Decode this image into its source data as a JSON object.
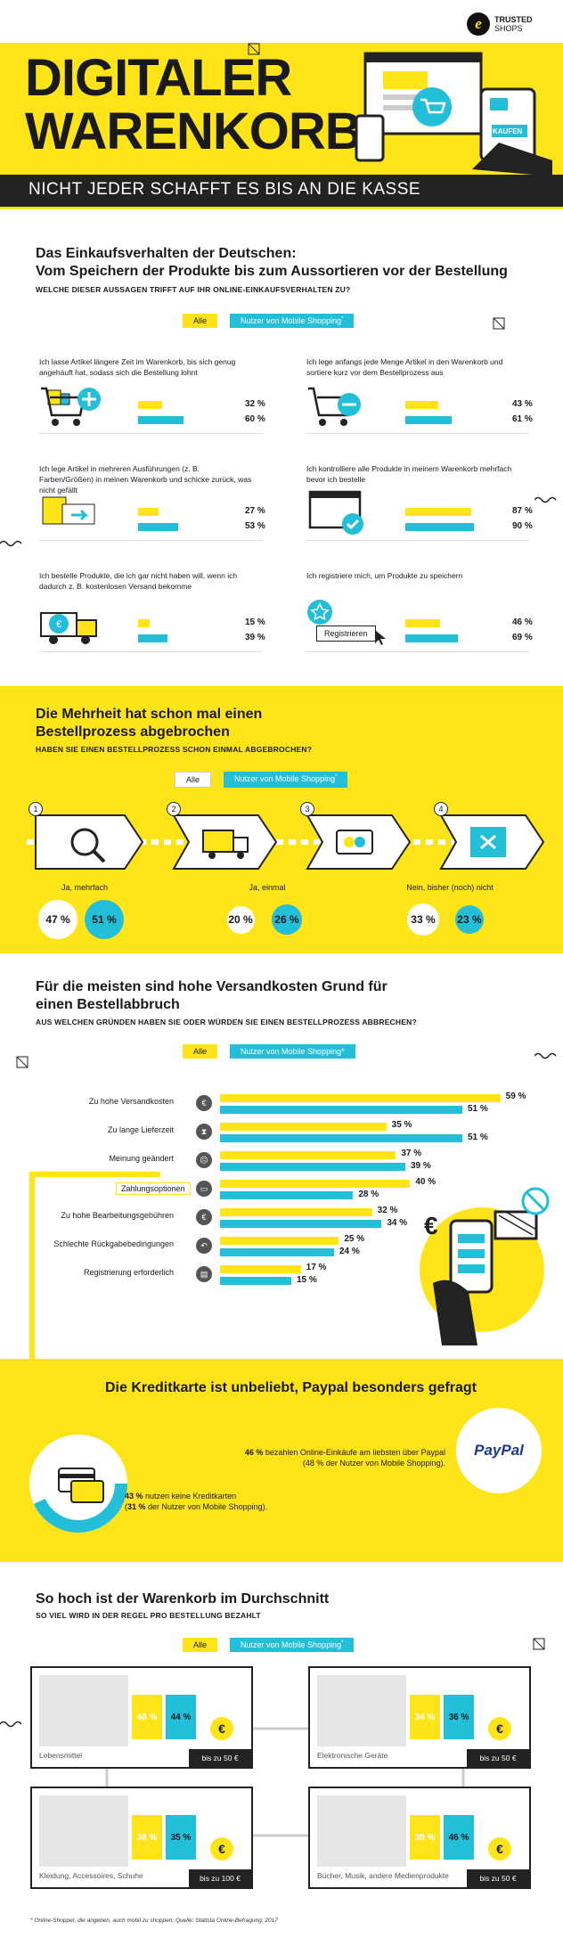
{
  "header": {
    "title_line1": "DIGITALER",
    "title_line2": "WARENKORB",
    "subtitle": "NICHT JEDER SCHAFFT ES BIS AN DIE KASSE",
    "brand_line1": "TRUSTED",
    "brand_line2": "SHOPS",
    "screen_label": "KAUFEN",
    "colors": {
      "yellow": "#ffe41a",
      "cyan": "#23bed8",
      "dark": "#1a1a1a"
    }
  },
  "legend": {
    "all": "Alle",
    "mobile": "Nutzer von Mobile Shopping",
    "mobile_mark": "*"
  },
  "section1": {
    "title_line1": "Das Einkaufsverhalten der Deutschen:",
    "title_line2": "Vom Speichern der Produkte bis zum Aussortieren vor der Bestellung",
    "question": "WELCHE DIESER AUSSAGEN TRIFFT AUF IHR ONLINE-EINKAUFSVERHALTEN ZU?",
    "button_label": "Registrieren",
    "items": [
      {
        "text": "Ich lasse Artikel längere Zeit im Warenkorb, bis sich genug angehäuft hat, sodass sich die Bestellung lohnt",
        "all": 32,
        "mobile": 60,
        "all_label": "32 %",
        "mobile_label": "60 %"
      },
      {
        "text": "Ich lege anfangs jede Menge Artikel in den Warenkorb und sortiere kurz vor dem Bestellprozess aus",
        "all": 43,
        "mobile": 61,
        "all_label": "43 %",
        "mobile_label": "61 %"
      },
      {
        "text": "Ich lege Artikel in mehreren Ausführungen (z. B. Farben/Größen) in meinen Warenkorb und schicke zurück, was nicht gefällt",
        "all": 27,
        "mobile": 53,
        "all_label": "27 %",
        "mobile_label": "53 %"
      },
      {
        "text": "Ich kontrolliere alle Produkte in meinem Warenkorb mehrfach bevor ich bestelle",
        "all": 87,
        "mobile": 90,
        "all_label": "87 %",
        "mobile_label": "90 %"
      },
      {
        "text": "Ich bestelle Produkte, die ich gar nicht haben will, wenn ich dadurch z. B. kostenlosen Versand bekomme",
        "all": 15,
        "mobile": 39,
        "all_label": "15 %",
        "mobile_label": "39 %"
      },
      {
        "text": "Ich registriere mich, um Produkte zu speichern",
        "all": 46,
        "mobile": 69,
        "all_label": "46 %",
        "mobile_label": "69 %"
      }
    ]
  },
  "section2": {
    "title_line1": "Die Mehrheit hat schon mal einen",
    "title_line2": "Bestellprozess abgebrochen",
    "question": "HABEN SIE EINEN BESTELLPROZESS SCHON EINMAL ABGEBROCHEN?",
    "steps": [
      "1",
      "2",
      "3",
      "4"
    ],
    "answers": [
      {
        "label": "Ja, mehrfach",
        "all": 47,
        "mobile": 51,
        "all_label": "47 %",
        "mobile_label": "51 %"
      },
      {
        "label": "Ja, einmal",
        "all": 20,
        "mobile": 26,
        "all_label": "20 %",
        "mobile_label": "26 %"
      },
      {
        "label": "Nein, bisher (noch) nicht",
        "all": 33,
        "mobile": 23,
        "all_label": "33 %",
        "mobile_label": "23 %"
      }
    ]
  },
  "chart_data": {
    "type": "bar",
    "orientation": "horizontal",
    "title": "Für die meisten sind hohe Versandkosten Grund für einen Bestellabbruch",
    "question": "AUS WELCHEN GRÜNDEN HABEN SIE ODER WÜRDEN SIE EINEN BESTELLPROZESS ABBRECHEN?",
    "categories": [
      "Zu hohe Versandkosten",
      "Zu lange Lieferzeit",
      "Meinung geändert",
      "Zahlungsoptionen",
      "Zu hohe Bearbeitungsgebühren",
      "Schlechte Rückgabebedingungen",
      "Registrierung erforderlich"
    ],
    "series": [
      {
        "name": "Alle",
        "values": [
          59,
          35,
          37,
          40,
          32,
          25,
          17
        ],
        "labels": [
          "59 %",
          "35 %",
          "37 %",
          "40 %",
          "32 %",
          "25 %",
          "17 %"
        ]
      },
      {
        "name": "Nutzer von Mobile Shopping*",
        "values": [
          51,
          51,
          39,
          28,
          34,
          24,
          15
        ],
        "labels": [
          "51 %",
          "51 %",
          "39 %",
          "28 %",
          "34 %",
          "24 %",
          "15 %"
        ]
      }
    ],
    "xlim": [
      0,
      60
    ],
    "grid": false,
    "legend": "top"
  },
  "section4": {
    "title": "Die Kreditkarte ist unbeliebt, Paypal besonders gefragt",
    "paypal_pct": "46 %",
    "paypal_text": " bezahlen Online-Einkäufe am liebsten über Paypal",
    "paypal_sub": "(48 % der Nutzer von Mobile Shopping).",
    "paypal_logo": "PayPal",
    "credit_pct": "43 %",
    "credit_text": " nutzen keine Kreditkarten",
    "credit_sub_pct": "31 %",
    "credit_sub": " der Nutzer von Mobile Shopping).",
    "credit_sub_open": "("
  },
  "section5": {
    "title": "So hoch ist der Warenkorb im Durchschnitt",
    "question": "SO VIEL WIRD IN DER REGEL PRO BESTELLUNG BEZAHLT",
    "cards": [
      {
        "label": "Lebensmittel",
        "all": "48 %",
        "mobile": "44 %",
        "price": "bis zu 50 €"
      },
      {
        "label": "Elektronische Geräte",
        "all": "34 %",
        "mobile": "36 %",
        "price": "bis zu 50 €"
      },
      {
        "label": "Kleidung, Accessoires, Schuhe",
        "all": "38 %",
        "mobile": "35 %",
        "price": "bis zu 100 €"
      },
      {
        "label": "Bücher, Musik, andere Medienprodukte",
        "all": "39 %",
        "mobile": "46 %",
        "price": "bis zu 50 €"
      }
    ],
    "euro": "€"
  },
  "footnote": "* Online-Shopper, die angeben, auch mobil zu shoppen; Quelle: Statista Online-Befragung: 2017"
}
